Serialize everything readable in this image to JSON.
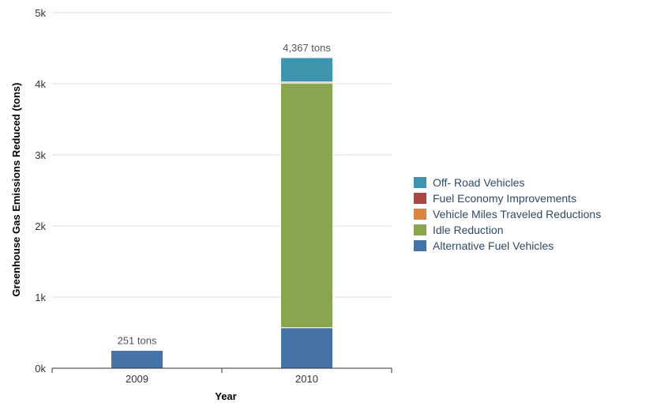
{
  "chart_data": {
    "type": "bar",
    "stacked": true,
    "categories": [
      "2009",
      "2010"
    ],
    "series": [
      {
        "name": "Alternative Fuel Vehicles",
        "color": "#4572a7",
        "values": [
          251,
          570
        ]
      },
      {
        "name": "Idle Reduction",
        "color": "#89a54e",
        "values": [
          0,
          3440
        ]
      },
      {
        "name": "Vehicle Miles Traveled Reductions",
        "color": "#db843d",
        "values": [
          0,
          0
        ]
      },
      {
        "name": "Fuel Economy Improvements",
        "color": "#aa4643",
        "values": [
          0,
          15
        ]
      },
      {
        "name": "Off-Road Vehicles",
        "color": "#3d96ae",
        "values": [
          0,
          342
        ]
      }
    ],
    "totals": [
      "251 tons",
      "4,367 tons"
    ],
    "xlabel": "Year",
    "ylabel": "Greenhouse Gas Emissions Reduced (tons)",
    "ylim": [
      0,
      5000
    ],
    "yticks": [
      0,
      1000,
      2000,
      3000,
      4000,
      5000
    ],
    "ytick_labels": [
      "0k",
      "1k",
      "2k",
      "3k",
      "4k",
      "5k"
    ],
    "legend_order": [
      "Off-Road Vehicles",
      "Fuel Economy Improvements",
      "Vehicle Miles Traveled Reductions",
      "Idle Reduction",
      "Alternative Fuel Vehicles"
    ],
    "legend_labels": [
      "Off- Road Vehicles",
      "Fuel Economy Improvements",
      "Vehicle Miles Traveled Reductions",
      "Idle Reduction",
      "Alternative Fuel Vehicles"
    ],
    "legend_position": "right",
    "grid": true
  }
}
